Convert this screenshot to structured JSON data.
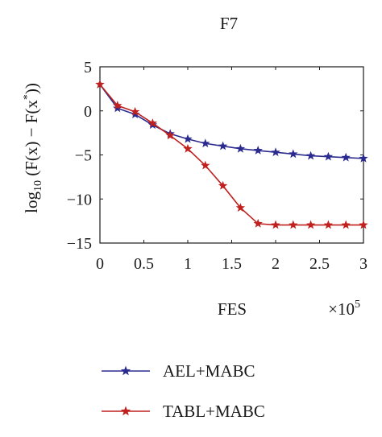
{
  "chart_data": {
    "type": "line",
    "title": "F7",
    "xlabel": "FES",
    "ylabel_main": "log",
    "ylabel_sub": "10",
    "ylabel_rest": " (F(x) − F(x",
    "ylabel_sup": "*",
    "ylabel_end": "))",
    "x_multiplier_base": "×10",
    "x_multiplier_exp": "5",
    "xlim": [
      0,
      3
    ],
    "ylim": [
      -15,
      5
    ],
    "xticks": [
      0,
      0.5,
      1,
      1.5,
      2,
      2.5,
      3
    ],
    "xtick_labels": [
      "0",
      "0.5",
      "1",
      "1.5",
      "2",
      "2.5",
      "3"
    ],
    "yticks": [
      5,
      0,
      -5,
      -10,
      -15
    ],
    "ytick_labels": [
      "5",
      "0",
      "−5",
      "−10",
      "−15"
    ],
    "grid": false,
    "legend_position": "bottom",
    "series": [
      {
        "name": "AEL+MABC",
        "color": "#2b2b8f",
        "marker": "star",
        "x": [
          0,
          0.2,
          0.4,
          0.6,
          0.8,
          1.0,
          1.2,
          1.4,
          1.6,
          1.8,
          2.0,
          2.2,
          2.4,
          2.6,
          2.8,
          3.0
        ],
        "y": [
          3.0,
          0.3,
          -0.4,
          -1.6,
          -2.6,
          -3.2,
          -3.7,
          -4.0,
          -4.3,
          -4.5,
          -4.7,
          -4.9,
          -5.1,
          -5.2,
          -5.3,
          -5.4
        ]
      },
      {
        "name": "TABL+MABC",
        "color": "#c0201e",
        "marker": "star",
        "x": [
          0,
          0.2,
          0.4,
          0.6,
          0.8,
          1.0,
          1.2,
          1.4,
          1.6,
          1.8,
          2.0,
          2.2,
          2.4,
          2.6,
          2.8,
          3.0
        ],
        "y": [
          3.0,
          0.6,
          -0.1,
          -1.4,
          -2.8,
          -4.3,
          -6.2,
          -8.5,
          -11.0,
          -12.8,
          -12.95,
          -12.95,
          -12.95,
          -12.95,
          -12.95,
          -12.95
        ]
      }
    ]
  }
}
